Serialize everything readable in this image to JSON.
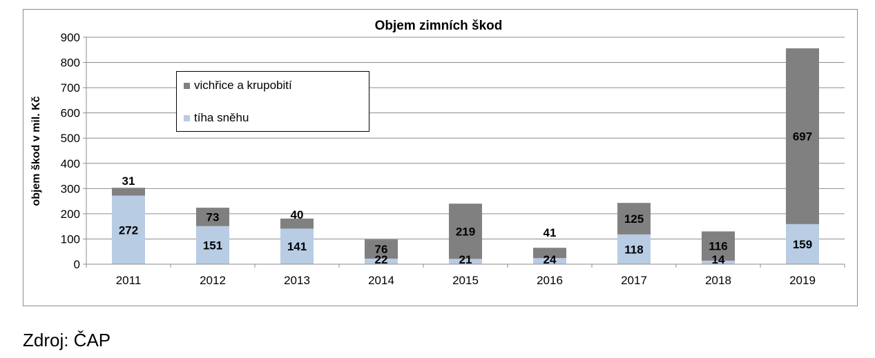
{
  "chart_data": {
    "type": "bar",
    "stacked": true,
    "title": "Objem zimních škod",
    "xlabel": "",
    "ylabel": "objem škod v mil. Kč",
    "ylim": [
      0,
      900
    ],
    "yticks": [
      0,
      100,
      200,
      300,
      400,
      500,
      600,
      700,
      800,
      900
    ],
    "grid": true,
    "legend_position": "top-left",
    "categories": [
      "2011",
      "2012",
      "2013",
      "2014",
      "2015",
      "2016",
      "2017",
      "2018",
      "2019"
    ],
    "series": [
      {
        "name": "tíha sněhu",
        "color": "#b8cce4",
        "values": [
          272,
          151,
          141,
          22,
          21,
          24,
          118,
          14,
          159
        ]
      },
      {
        "name": "vichřice a krupobití",
        "color": "#808080",
        "values": [
          31,
          73,
          40,
          76,
          219,
          41,
          125,
          116,
          697
        ]
      }
    ]
  },
  "source": "Zdroj: ČAP"
}
